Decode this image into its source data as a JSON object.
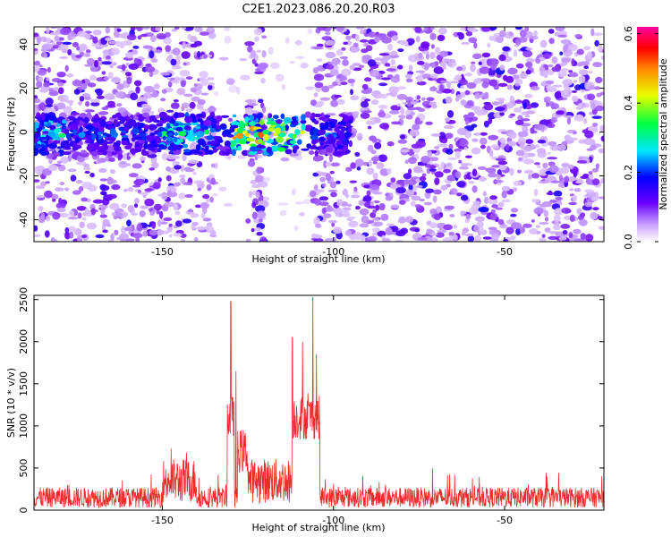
{
  "page_title": "C2E1.2023.086.20.20.R03",
  "colors": {
    "snr_line": "#ee2a2a",
    "axis": "#000000",
    "background": "#ffffff"
  },
  "chart_data": [
    {
      "type": "heatmap",
      "title": "C2E1.2023.086.20.20.R03",
      "xlabel": "Height of straight line (km)",
      "ylabel": "Frequency (Hz)",
      "xlim": [
        -187.5,
        -21
      ],
      "ylim": [
        -50,
        48
      ],
      "xticks": [
        -150,
        -100,
        -50
      ],
      "yticks": [
        -40,
        -20,
        0,
        20,
        40
      ],
      "colorbar": {
        "label": "Normalized spectral amplitude",
        "range": [
          0.0,
          0.62
        ],
        "ticks": [
          0.0,
          0.2,
          0.4,
          0.6
        ],
        "colormap": "rainbow (white-purple-blue-cyan-green-yellow-orange-red-magenta)"
      },
      "features": {
        "signal_band_frequency_hz": [
          -10,
          8
        ],
        "signal_band_x_range_km": [
          -187.5,
          -95
        ],
        "peak_amplitude_x_range_km": [
          -130,
          -108
        ],
        "peak_amplitude_value": 0.55,
        "background_amplitude_approx": 0.08,
        "blank_columns_km": [
          [
            -135,
            -125
          ],
          [
            -120,
            -106
          ]
        ]
      }
    },
    {
      "type": "line",
      "xlabel": "Height of straight line (km)",
      "ylabel": "SNR (10 * v/v)",
      "xlim": [
        -187.5,
        -21
      ],
      "ylim": [
        0,
        2550
      ],
      "xticks": [
        -150,
        -100,
        -50
      ],
      "yticks": [
        0,
        500,
        1000,
        1500,
        2000,
        2500
      ],
      "baseline_snr_approx": 150,
      "noise_amplitude_approx": 120,
      "segments": [
        {
          "x_range": [
            -150,
            -140
          ],
          "level": 350
        },
        {
          "x_range": [
            -131,
            -129
          ],
          "level": 1100
        },
        {
          "x_range": [
            -128,
            -125
          ],
          "level": 700
        },
        {
          "x_range": [
            -125,
            -112
          ],
          "level": 350
        },
        {
          "x_range": [
            -112,
            -104
          ],
          "level": 1100
        }
      ],
      "peaks": [
        {
          "x": -130,
          "y": 2480
        },
        {
          "x": -128.5,
          "y": 1650
        },
        {
          "x": -112,
          "y": 2050
        },
        {
          "x": -109,
          "y": 2000
        },
        {
          "x": -106,
          "y": 2530
        },
        {
          "x": -105,
          "y": 1850
        }
      ]
    }
  ]
}
